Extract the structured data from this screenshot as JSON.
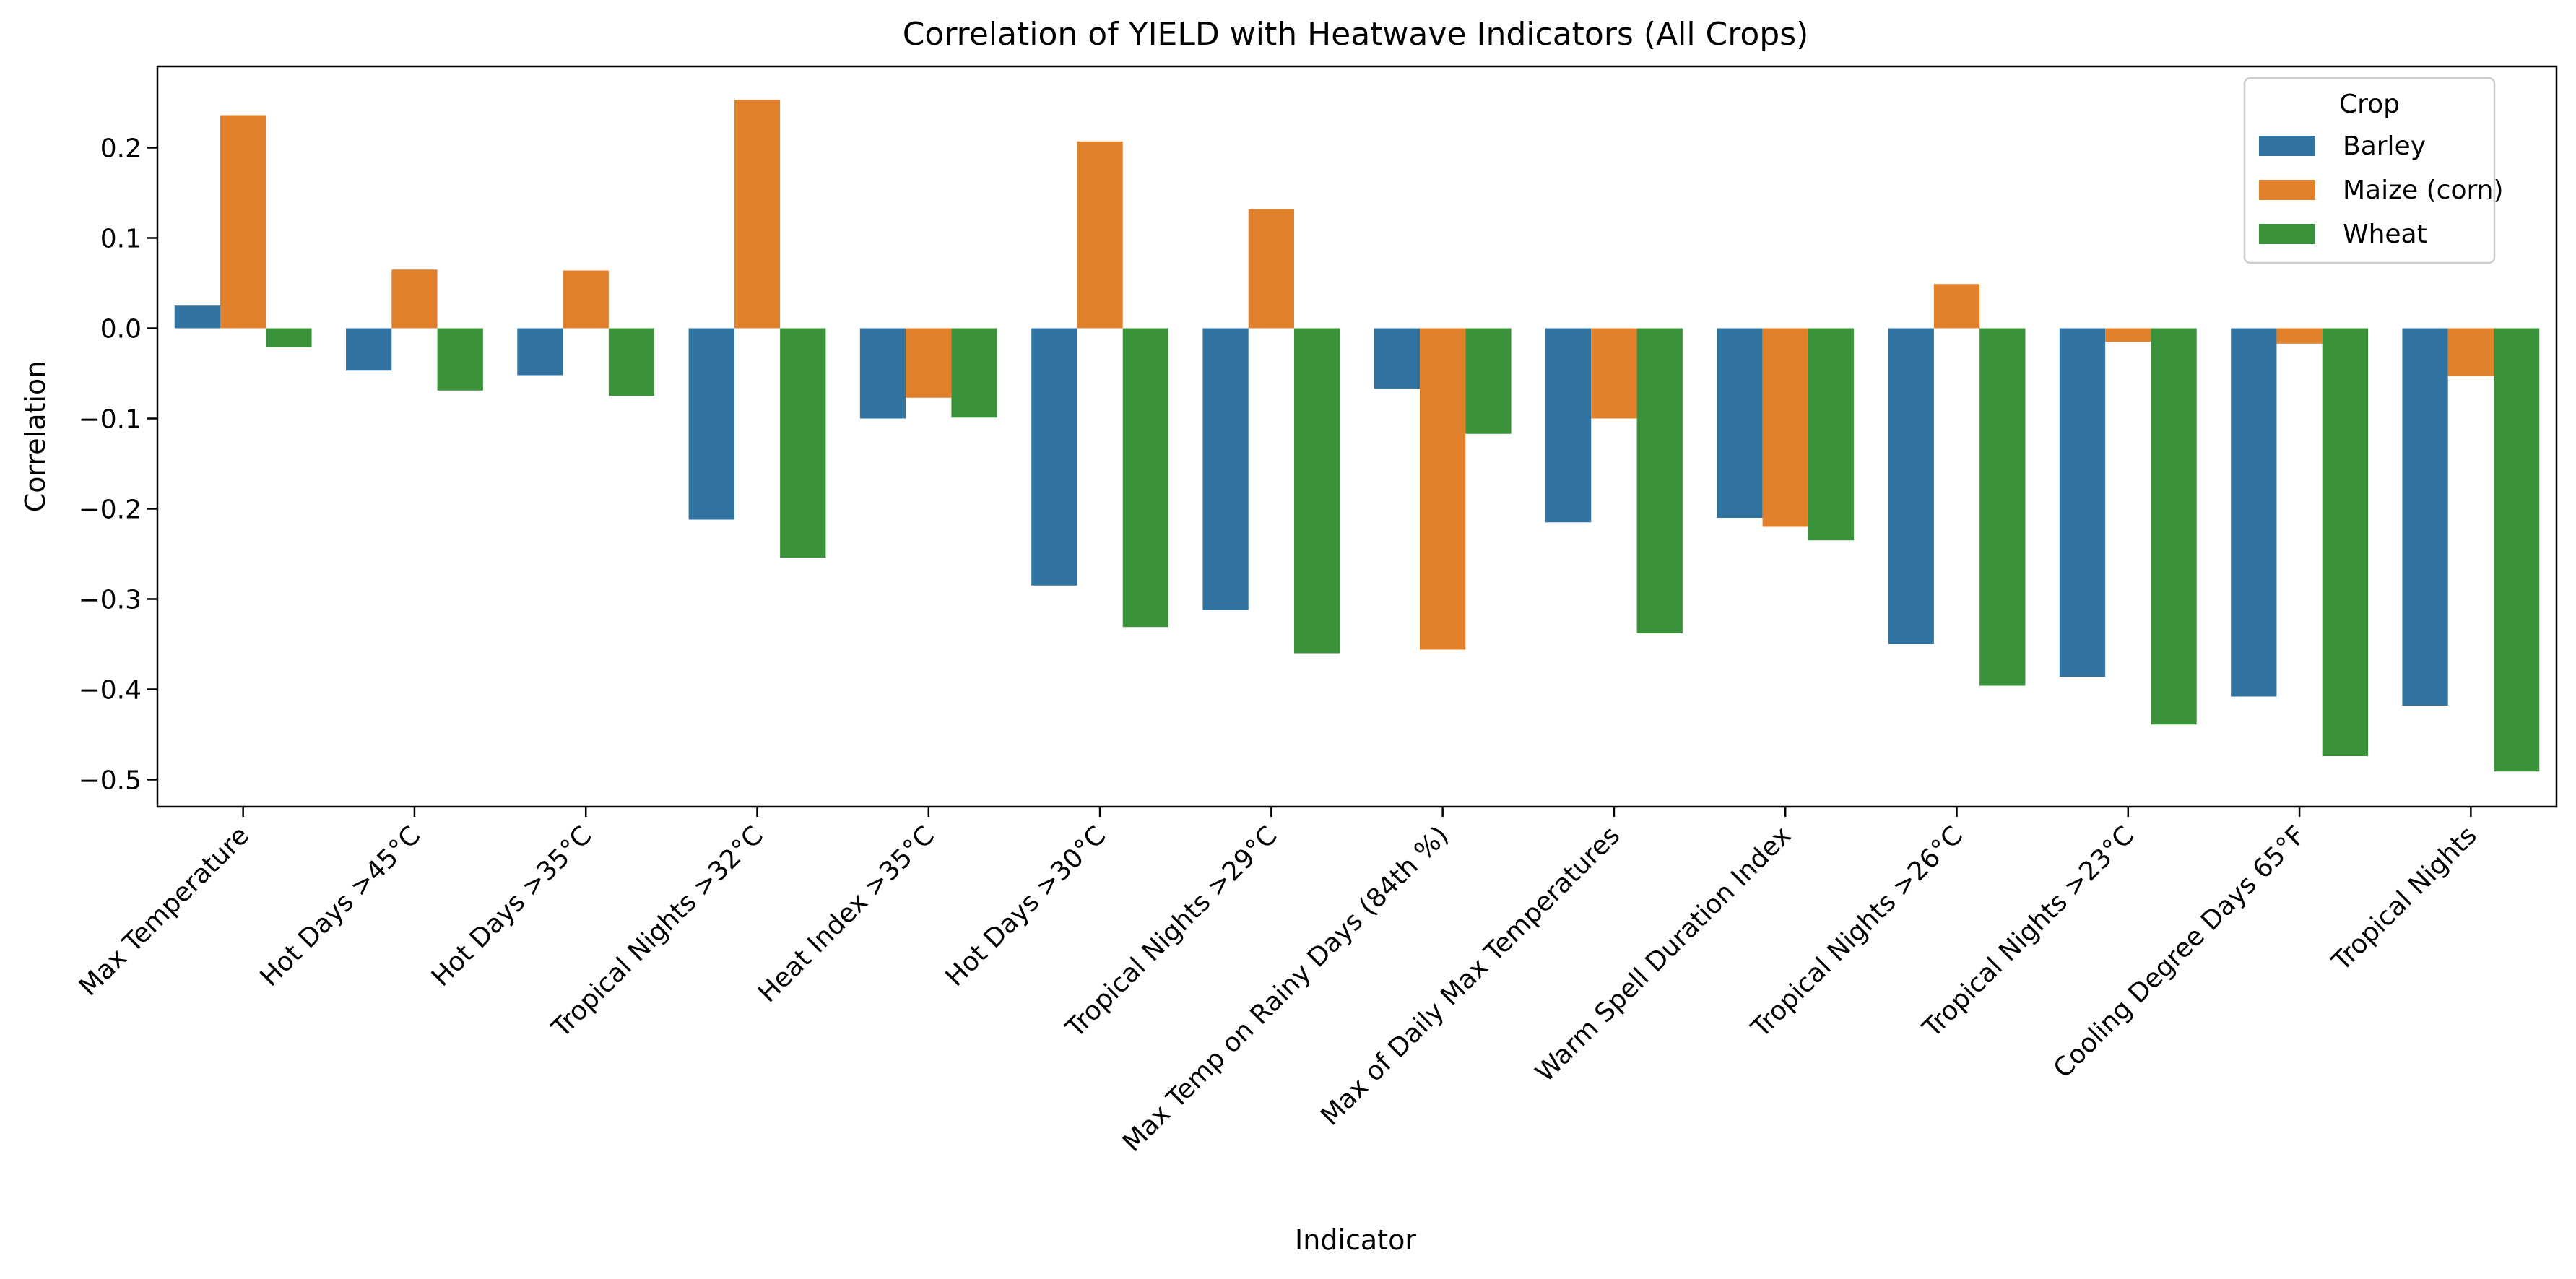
{
  "chart_data": {
    "type": "bar",
    "title": "Correlation of YIELD with Heatwave Indicators (All Crops)",
    "xlabel": "Indicator",
    "ylabel": "Correlation",
    "ylim": [
      -0.53,
      0.29
    ],
    "yticks": [
      0.2,
      0.1,
      0.0,
      -0.1,
      -0.2,
      -0.3,
      -0.4,
      -0.5
    ],
    "ytick_labels": [
      "0.2",
      "0.1",
      "0.0",
      "−0.1",
      "−0.2",
      "−0.3",
      "−0.4",
      "−0.5"
    ],
    "grid": false,
    "legend": {
      "title": "Crop",
      "placement": "top-right"
    },
    "categories": [
      "Max Temperature",
      "Hot Days >45°C",
      "Hot Days >35°C",
      "Tropical Nights >32°C",
      "Heat Index >35°C",
      "Hot Days >30°C",
      "Tropical Nights >29°C",
      "Max Temp on Rainy Days (84th %)",
      "Max of Daily Max Temperatures",
      "Warm Spell Duration Index",
      "Tropical Nights >26°C",
      "Tropical Nights >23°C",
      "Cooling Degree Days 65°F",
      "Tropical Nights"
    ],
    "series": [
      {
        "name": "Barley",
        "color": "#3274a1",
        "values": [
          0.025,
          -0.047,
          -0.052,
          -0.212,
          -0.1,
          -0.285,
          -0.312,
          -0.067,
          -0.215,
          -0.21,
          -0.35,
          -0.386,
          -0.408,
          -0.418
        ]
      },
      {
        "name": "Maize (corn)",
        "color": "#e1812c",
        "values": [
          0.236,
          0.065,
          0.064,
          0.253,
          -0.077,
          0.207,
          0.132,
          -0.356,
          -0.1,
          -0.22,
          0.049,
          -0.015,
          -0.017,
          -0.053
        ]
      },
      {
        "name": "Wheat",
        "color": "#3a923a",
        "values": [
          -0.021,
          -0.069,
          -0.075,
          -0.254,
          -0.099,
          -0.331,
          -0.36,
          -0.117,
          -0.338,
          -0.235,
          -0.396,
          -0.439,
          -0.474,
          -0.491
        ]
      }
    ]
  }
}
